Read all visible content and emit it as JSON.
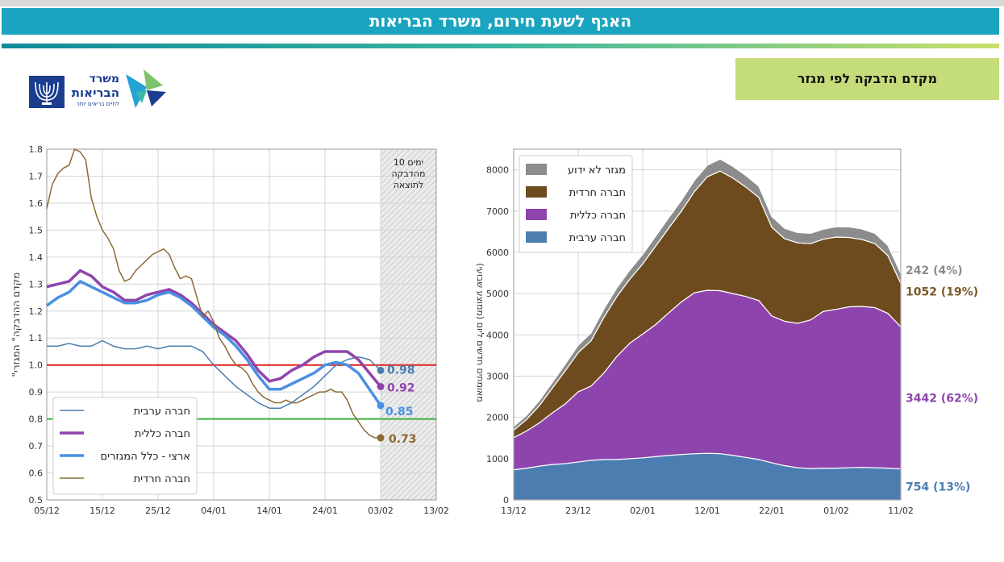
{
  "header": {
    "title": "האגף לשעת חירום, משרד הבריאות",
    "subtitle": "מקדם הדבקה לפי מגזר"
  },
  "logo": {
    "line1": "משרד",
    "line2": "הבריאות",
    "tagline": "לחיים בריאים יותר"
  },
  "colors": {
    "banner": "#1ba4bf",
    "subtitle_bg": "#c5dc7a",
    "arab": "#4c7db1",
    "general": "#8e44ad",
    "haredi": "#7a5a2a",
    "unknown": "#7f7f7f",
    "national": "#4a90e2",
    "haredi_line": "#8b6a33",
    "red_ref": "#e02020",
    "green_ref": "#3cb043"
  },
  "chart_data": [
    {
      "id": "left",
      "type": "line",
      "title": "",
      "ylabel": "\"מקדם ההדבקה\" המגזרי",
      "ylim": [
        0.5,
        1.8
      ],
      "yticks": [
        "0.5",
        "0.6",
        "0.7",
        "0.8",
        "0.9",
        "1.0",
        "1.1",
        "1.2",
        "1.3",
        "1.4",
        "1.5",
        "1.6",
        "1.7",
        "1.8"
      ],
      "xlim": [
        0,
        70
      ],
      "xticks": [
        {
          "day": 0,
          "label": "05/12"
        },
        {
          "day": 10,
          "label": "15/12"
        },
        {
          "day": 20,
          "label": "25/12"
        },
        {
          "day": 30,
          "label": "04/01"
        },
        {
          "day": 40,
          "label": "14/01"
        },
        {
          "day": 50,
          "label": "24/01"
        },
        {
          "day": 60,
          "label": "03/02"
        },
        {
          "day": 70,
          "label": "13/02"
        }
      ],
      "shaded": {
        "from": 60,
        "to": 70,
        "label": "10 ימים מהדבקה לתוצאה"
      },
      "reference_lines": [
        {
          "y": 1.0,
          "color": "#e02020"
        },
        {
          "y": 0.8,
          "color": "#3cb043"
        }
      ],
      "series": [
        {
          "name": "חברה ערבית",
          "color": "#4c7db1",
          "width": 1.5,
          "x": [
            0,
            2,
            4,
            6,
            8,
            10,
            12,
            14,
            16,
            18,
            20,
            22,
            24,
            26,
            28,
            30,
            32,
            34,
            36,
            38,
            40,
            42,
            44,
            46,
            48,
            50,
            52,
            54,
            56,
            58,
            60
          ],
          "y": [
            1.07,
            1.07,
            1.08,
            1.07,
            1.07,
            1.09,
            1.07,
            1.06,
            1.06,
            1.07,
            1.06,
            1.07,
            1.07,
            1.07,
            1.05,
            1.0,
            0.96,
            0.92,
            0.89,
            0.86,
            0.84,
            0.84,
            0.86,
            0.89,
            0.92,
            0.96,
            1.0,
            1.02,
            1.03,
            1.02,
            0.98
          ],
          "end_label": "0.98"
        },
        {
          "name": "חברה כללית",
          "color": "#8e44ad",
          "width": 3.5,
          "x": [
            0,
            2,
            4,
            6,
            8,
            10,
            12,
            14,
            16,
            18,
            20,
            22,
            24,
            26,
            28,
            30,
            32,
            34,
            36,
            38,
            40,
            42,
            44,
            46,
            48,
            50,
            52,
            54,
            56,
            58,
            60
          ],
          "y": [
            1.29,
            1.3,
            1.31,
            1.35,
            1.33,
            1.29,
            1.27,
            1.24,
            1.24,
            1.26,
            1.27,
            1.28,
            1.26,
            1.23,
            1.19,
            1.15,
            1.12,
            1.09,
            1.04,
            0.98,
            0.94,
            0.95,
            0.98,
            1.0,
            1.03,
            1.05,
            1.05,
            1.05,
            1.02,
            0.97,
            0.92
          ],
          "end_label": "0.92"
        },
        {
          "name": "ארצי - כלל המגזרים",
          "color": "#4a90e2",
          "width": 3.5,
          "x": [
            0,
            2,
            4,
            6,
            8,
            10,
            12,
            14,
            16,
            18,
            20,
            22,
            24,
            26,
            28,
            30,
            32,
            34,
            36,
            38,
            40,
            42,
            44,
            46,
            48,
            50,
            52,
            54,
            56,
            58,
            60
          ],
          "y": [
            1.22,
            1.25,
            1.27,
            1.31,
            1.29,
            1.27,
            1.25,
            1.23,
            1.23,
            1.24,
            1.26,
            1.27,
            1.25,
            1.22,
            1.18,
            1.14,
            1.11,
            1.07,
            1.02,
            0.96,
            0.91,
            0.91,
            0.93,
            0.95,
            0.97,
            1.0,
            1.01,
            1.0,
            0.97,
            0.91,
            0.85
          ],
          "end_label": "0.85"
        },
        {
          "name": "חברה חרדית",
          "color": "#8b6a33",
          "width": 1.5,
          "x": [
            0,
            1,
            2,
            3,
            4,
            5,
            6,
            7,
            8,
            9,
            10,
            11,
            12,
            13,
            14,
            15,
            16,
            17,
            18,
            19,
            20,
            21,
            22,
            23,
            24,
            25,
            26,
            27,
            28,
            29,
            30,
            31,
            32,
            33,
            34,
            35,
            36,
            37,
            38,
            39,
            40,
            41,
            42,
            43,
            44,
            45,
            46,
            47,
            48,
            49,
            50,
            51,
            52,
            53,
            54,
            55,
            56,
            57,
            58,
            59,
            60
          ],
          "y": [
            1.58,
            1.67,
            1.71,
            1.73,
            1.74,
            1.8,
            1.79,
            1.76,
            1.62,
            1.55,
            1.5,
            1.47,
            1.43,
            1.35,
            1.31,
            1.32,
            1.35,
            1.37,
            1.39,
            1.41,
            1.42,
            1.43,
            1.41,
            1.36,
            1.32,
            1.33,
            1.32,
            1.25,
            1.18,
            1.2,
            1.16,
            1.1,
            1.07,
            1.03,
            1.0,
            0.99,
            0.97,
            0.93,
            0.9,
            0.88,
            0.87,
            0.86,
            0.86,
            0.87,
            0.86,
            0.86,
            0.87,
            0.88,
            0.89,
            0.9,
            0.9,
            0.91,
            0.9,
            0.9,
            0.87,
            0.82,
            0.79,
            0.76,
            0.74,
            0.73,
            0.73
          ],
          "end_label": "0.73"
        }
      ]
    },
    {
      "id": "right",
      "type": "area",
      "title": "",
      "ylabel": "מאומתים חדשים ליום (ממוצע שבועי)",
      "ylim": [
        0,
        8500
      ],
      "yticks": [
        "0",
        "1000",
        "2000",
        "3000",
        "4000",
        "5000",
        "6000",
        "7000",
        "8000"
      ],
      "xlim": [
        0,
        60
      ],
      "xticks": [
        {
          "day": 0,
          "label": "13/12"
        },
        {
          "day": 10,
          "label": "23/12"
        },
        {
          "day": 20,
          "label": "02/01"
        },
        {
          "day": 30,
          "label": "12/01"
        },
        {
          "day": 40,
          "label": "22/01"
        },
        {
          "day": 50,
          "label": "01/02"
        },
        {
          "day": 60,
          "label": "11/02"
        }
      ],
      "x": [
        0,
        2,
        4,
        6,
        8,
        10,
        12,
        14,
        16,
        18,
        20,
        22,
        24,
        26,
        28,
        30,
        32,
        34,
        36,
        38,
        40,
        42,
        44,
        46,
        48,
        50,
        52,
        54,
        56,
        58,
        60
      ],
      "series": [
        {
          "name": "חברה ערבית",
          "color": "#4c7db1",
          "values": [
            730,
            770,
            820,
            860,
            880,
            920,
            960,
            980,
            980,
            1000,
            1020,
            1050,
            1080,
            1100,
            1120,
            1130,
            1120,
            1080,
            1030,
            980,
            900,
            830,
            780,
            760,
            770,
            770,
            780,
            790,
            780,
            770,
            754
          ],
          "end_label": "754 (13%)"
        },
        {
          "name": "חברה כללית",
          "color": "#8e44ad",
          "values": [
            780,
            900,
            1050,
            1250,
            1450,
            1700,
            1800,
            2100,
            2500,
            2800,
            3000,
            3200,
            3450,
            3700,
            3900,
            3950,
            3950,
            3920,
            3900,
            3850,
            3560,
            3500,
            3500,
            3600,
            3800,
            3850,
            3900,
            3900,
            3880,
            3750,
            3442
          ],
          "end_label": "3442 (62%)"
        },
        {
          "name": "חברה חרדית",
          "color": "#6e4b1f",
          "values": [
            180,
            280,
            420,
            600,
            800,
            950,
            1100,
            1350,
            1450,
            1550,
            1700,
            1900,
            2050,
            2200,
            2450,
            2750,
            2900,
            2800,
            2650,
            2500,
            2150,
            2000,
            1950,
            1850,
            1750,
            1750,
            1680,
            1620,
            1550,
            1400,
            1052
          ],
          "end_label": "1052 (19%)"
        },
        {
          "name": "מגזר לא ידוע",
          "color": "#8c8c8c",
          "values": [
            90,
            100,
            120,
            140,
            160,
            180,
            190,
            200,
            210,
            220,
            230,
            240,
            250,
            260,
            270,
            280,
            290,
            280,
            280,
            270,
            260,
            250,
            250,
            250,
            240,
            250,
            255,
            255,
            250,
            245,
            242
          ],
          "end_label": "242 (4%)"
        }
      ]
    }
  ]
}
